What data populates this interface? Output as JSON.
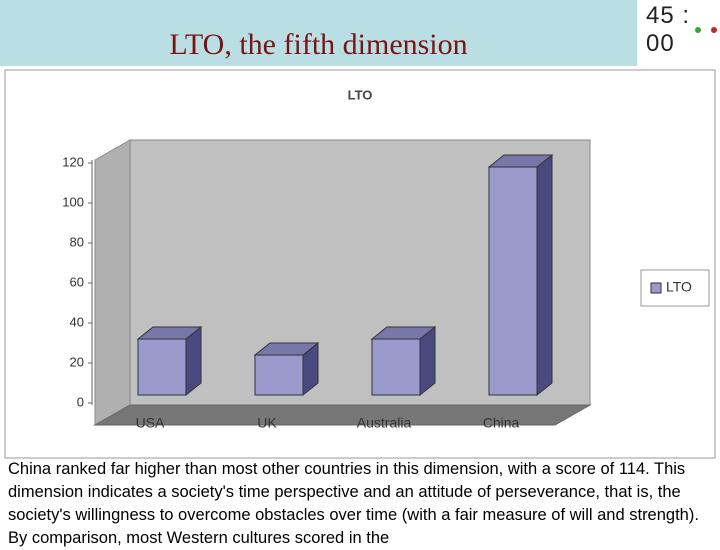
{
  "header": {
    "title": "LTO, the fifth dimension",
    "timer": "45 : 00"
  },
  "chart_data": {
    "type": "bar",
    "title": "LTO",
    "categories": [
      "USA",
      "UK",
      "Australia",
      "China"
    ],
    "series": [
      {
        "name": "LTO",
        "color": "#9999cc",
        "values": [
          28,
          20,
          28,
          114
        ]
      }
    ],
    "ylim": [
      0,
      120
    ],
    "yticks": [
      0,
      20,
      40,
      60,
      80,
      100,
      120
    ],
    "grid": false,
    "legend": "right"
  },
  "text": "China ranked far higher than most other countries in this dimension, with a score of 114. This dimension indicates a society's time perspective and an attitude of perseverance, that is, the society's willingness to overcome obstacles over time (with a fair measure of will and strength). By comparison, most Western cultures scored in the"
}
